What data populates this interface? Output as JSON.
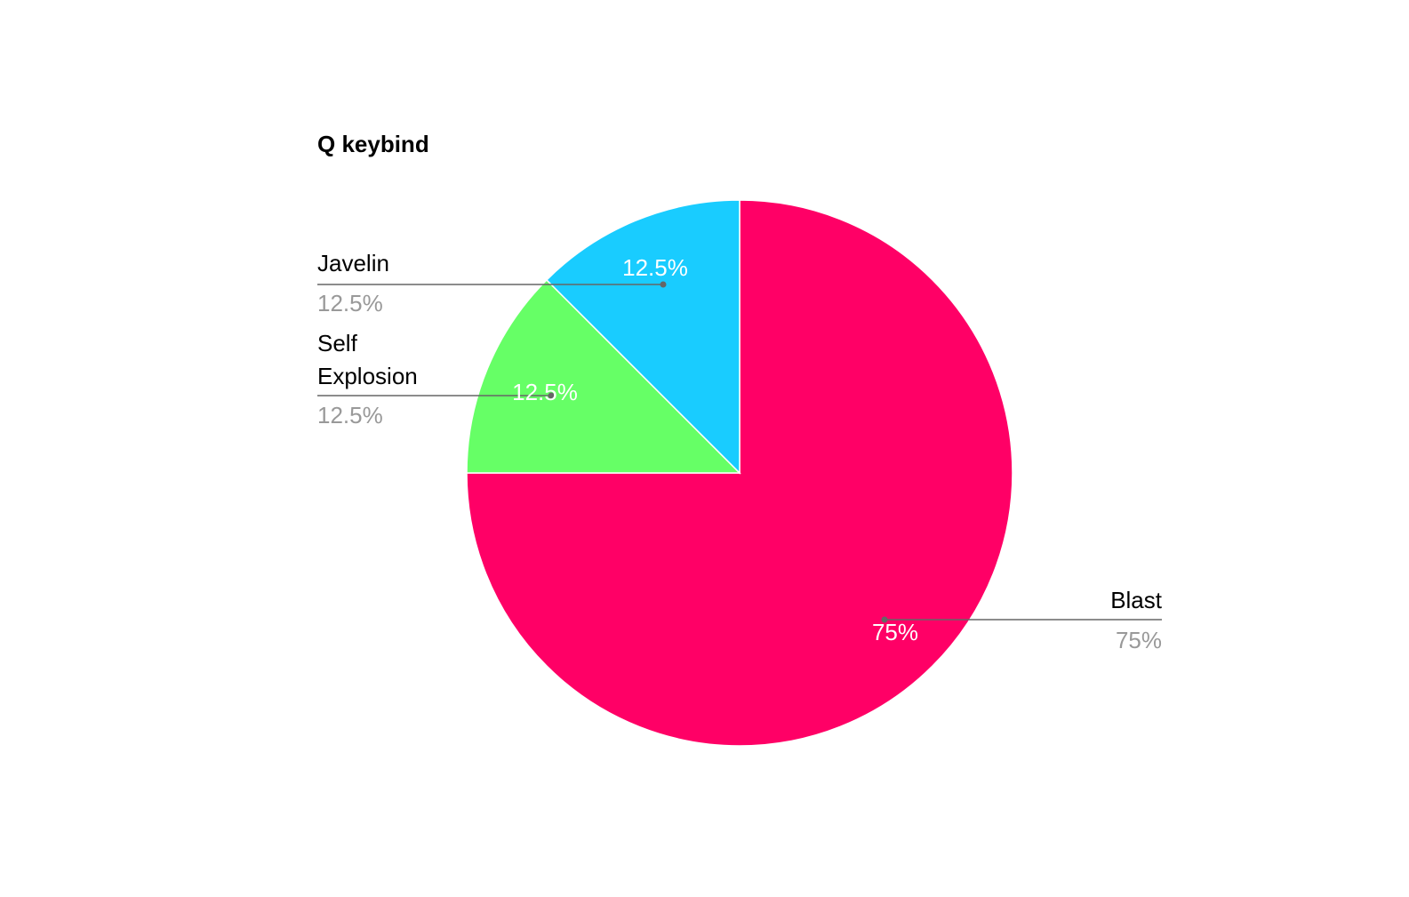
{
  "chart_data": {
    "type": "pie",
    "title": "Q keybind",
    "slices": [
      {
        "label": "Blast",
        "value": 75,
        "display": "75%",
        "color": "#ff0066"
      },
      {
        "label": "Self Explosion",
        "value": 12.5,
        "display": "12.5%",
        "color": "#66ff66"
      },
      {
        "label": "Javelin",
        "value": 12.5,
        "display": "12.5%",
        "color": "#19ccff"
      }
    ],
    "start_angle_deg": 0,
    "direction": "clockwise",
    "legend": "labeled",
    "colors": {
      "leader_line": "#666666",
      "value_text": "#999999",
      "slice_border": "#ffffff"
    }
  }
}
